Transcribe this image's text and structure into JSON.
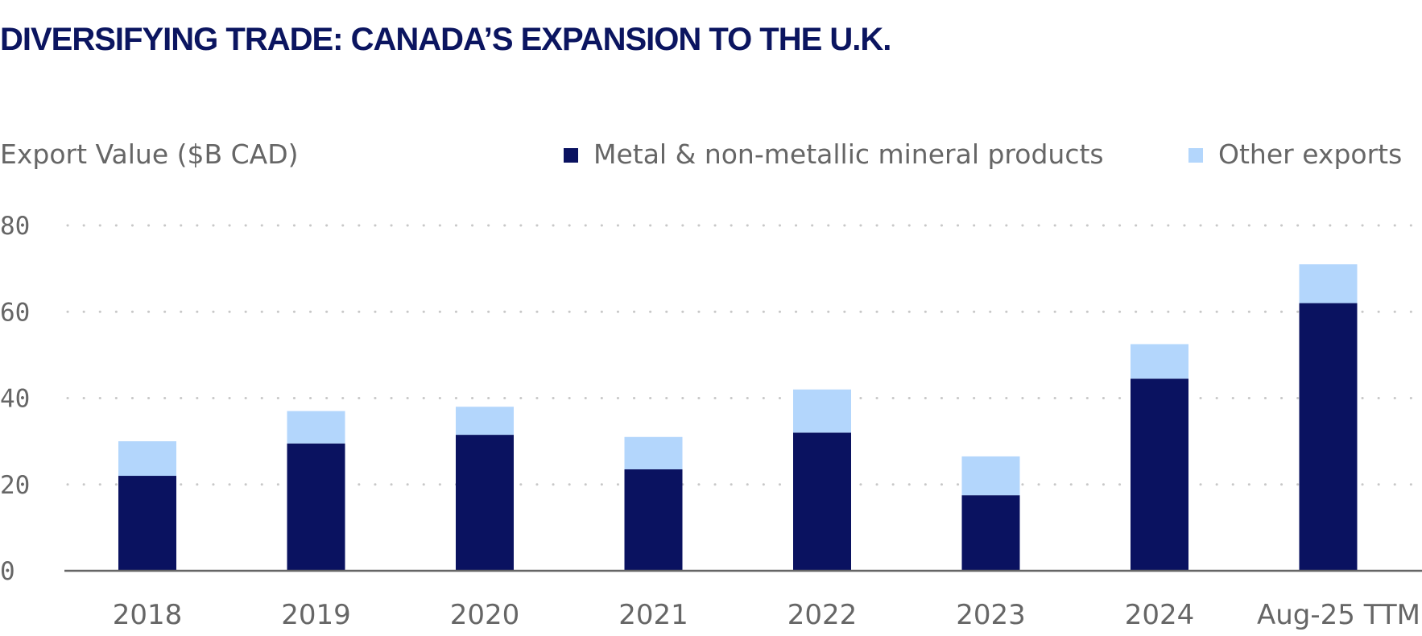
{
  "chart_data": {
    "type": "bar",
    "stacked": true,
    "title": "DIVERSIFYING TRADE: CANADA’S EXPANSION TO THE U.K.",
    "ylabel": "Export Value ($B CAD)",
    "xlabel": "",
    "ylim": [
      0,
      80
    ],
    "yticks": [
      "0",
      "20",
      "40",
      "60",
      "80"
    ],
    "yticks_values": [
      0,
      20,
      40,
      60,
      80
    ],
    "grid": true,
    "legend_position": "top-right",
    "categories": [
      "2018",
      "2019",
      "2020",
      "2021",
      "2022",
      "2023",
      "2024",
      "Aug-25 TTM"
    ],
    "series": [
      {
        "name": "Metal & non-metallic mineral products",
        "color": "#0a1260",
        "values": [
          22,
          29.5,
          31.5,
          23.5,
          32,
          17.5,
          44.5,
          62
        ]
      },
      {
        "name": "Other exports",
        "color": "#b3d6fc",
        "values": [
          8,
          7.5,
          6.5,
          7.5,
          10,
          9,
          8,
          9
        ]
      }
    ]
  },
  "colors": {
    "title": "#0b1560",
    "text": "#666666",
    "grid": "#c8c8c8"
  }
}
